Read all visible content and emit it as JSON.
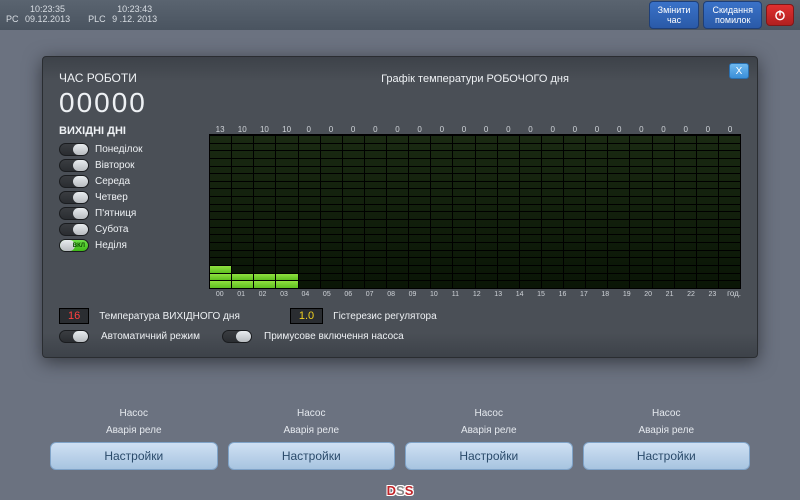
{
  "topbar": {
    "pc_label": "PC",
    "pc_time": "10:23:35",
    "pc_date": "09.12.2013",
    "plc_label": "PLC",
    "plc_time": "10:23:43",
    "plc_date": "9 .12. 2013",
    "btn_change_time": "Змінити\nчас",
    "btn_reset_errors": "Скидання\nпомилок"
  },
  "bgcol": {
    "pump": "Насос",
    "relay_alarm": "Аварія реле",
    "settings": "Настройки"
  },
  "modal": {
    "close": "X",
    "worktime_label": "ЧАС РОБОТИ",
    "worktime_value": "00000",
    "chart_title": "Графік температури РОБОЧОГО дня",
    "days_label": "ВИХІДНІ ДНІ",
    "days": [
      {
        "label": "Понеділок",
        "on": false
      },
      {
        "label": "Вівторок",
        "on": false
      },
      {
        "label": "Середа",
        "on": false
      },
      {
        "label": "Четвер",
        "on": false
      },
      {
        "label": "П'ятниця",
        "on": false
      },
      {
        "label": "Субота",
        "on": false
      },
      {
        "label": "Неділя",
        "on": true
      }
    ],
    "on_text": "ВКЛ",
    "chart": {
      "hours": [
        "00",
        "01",
        "02",
        "03",
        "04",
        "05",
        "06",
        "07",
        "08",
        "09",
        "10",
        "11",
        "12",
        "13",
        "14",
        "15",
        "16",
        "17",
        "18",
        "19",
        "20",
        "21",
        "22",
        "23"
      ],
      "hour_unit": "год.",
      "values": [
        13,
        10,
        10,
        10,
        0,
        0,
        0,
        0,
        0,
        0,
        0,
        0,
        0,
        0,
        0,
        0,
        0,
        0,
        0,
        0,
        0,
        0,
        0,
        0
      ],
      "bars": [
        3,
        2,
        2,
        2,
        0,
        0,
        0,
        0,
        0,
        0,
        0,
        0,
        0,
        0,
        0,
        0,
        0,
        0,
        0,
        0,
        0,
        0,
        0,
        0
      ],
      "cells_per_bar": 20,
      "lit_color": "#8fe040",
      "bg_dark": "#0a1506"
    },
    "temp_off_label": "Температура ВИХІДНОГО дня",
    "temp_off_value": "16",
    "hyst_label": "Гістерезис регулятора",
    "hyst_value": "1.0",
    "auto_label": "Автоматичний режим",
    "auto_on": false,
    "pump_force_label": "Примусове включення насоса",
    "pump_force_on": false
  },
  "logo": {
    "d": "D",
    "s1": "S",
    "s2": "S"
  }
}
